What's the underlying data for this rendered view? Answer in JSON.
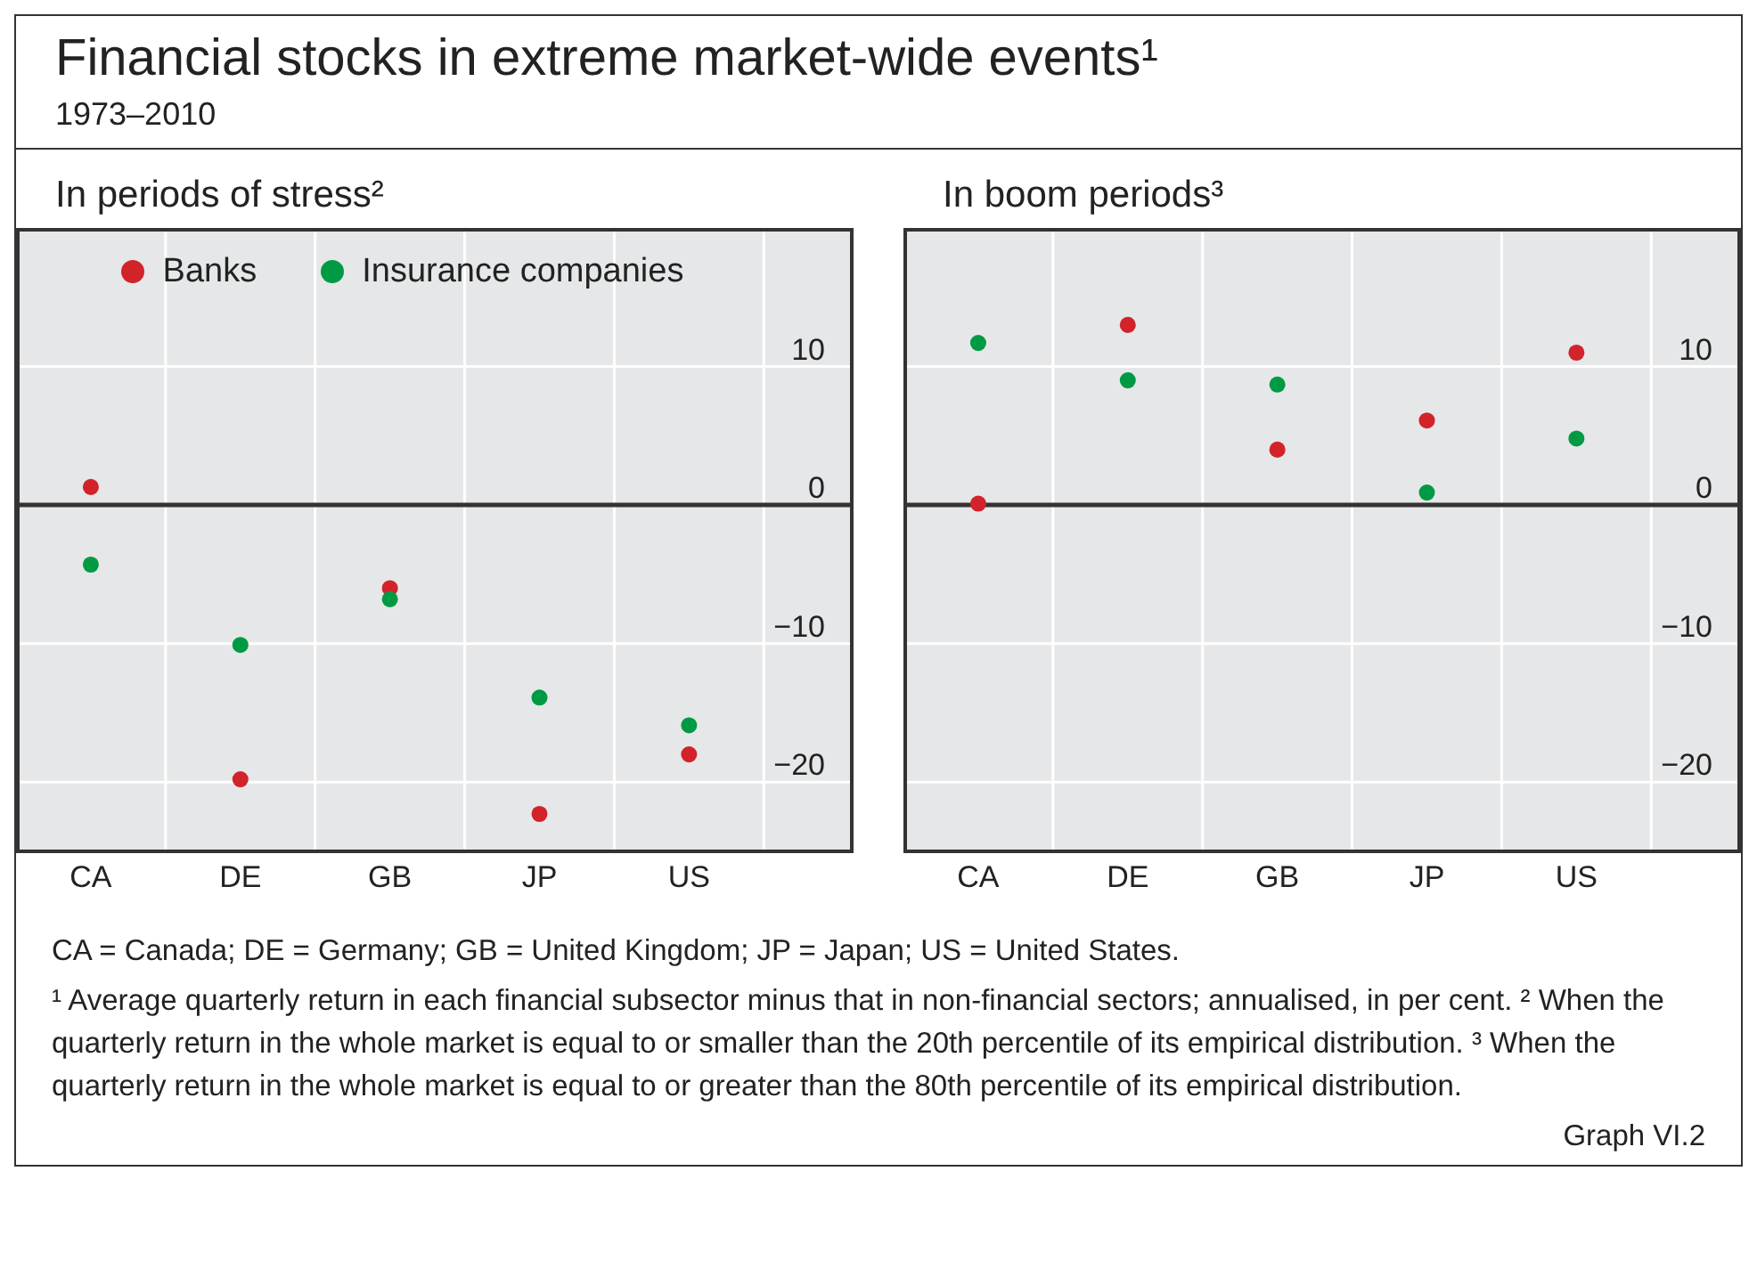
{
  "chart_data": [
    {
      "type": "other",
      "title": "Financial stocks in extreme market-wide events¹",
      "subtitle": "1973–2010"
    },
    {
      "type": "scatter",
      "title": "In periods of stress²",
      "categories": [
        "CA",
        "DE",
        "GB",
        "JP",
        "US"
      ],
      "ylim": [
        -25,
        20
      ],
      "yticks": [
        -20,
        -10,
        0,
        10
      ],
      "grid": true,
      "legend": "top",
      "marker": "circle",
      "ref_lines": [
        {
          "axis": "y",
          "value": 0,
          "color": "#333333"
        }
      ],
      "series": [
        {
          "name": "Banks",
          "color": "#d2232a",
          "values": [
            1.3,
            -19.8,
            -6.0,
            -22.3,
            -18.0
          ]
        },
        {
          "name": "Insurance companies",
          "color": "#009a44",
          "values": [
            -4.3,
            -10.1,
            -6.8,
            -13.9,
            -15.9
          ]
        }
      ]
    },
    {
      "type": "scatter",
      "title": "In boom periods³",
      "categories": [
        "CA",
        "DE",
        "GB",
        "JP",
        "US"
      ],
      "ylim": [
        -25,
        20
      ],
      "yticks": [
        -20,
        -10,
        0,
        10
      ],
      "grid": true,
      "marker": "circle",
      "ref_lines": [
        {
          "axis": "y",
          "value": 0,
          "color": "#333333"
        }
      ],
      "series": [
        {
          "color": "#d2232a",
          "values": [
            0.1,
            13.0,
            4.0,
            6.1,
            11.0
          ]
        },
        {
          "color": "#009a44",
          "values": [
            11.7,
            9.0,
            8.7,
            0.9,
            4.8
          ]
        }
      ]
    },
    {
      "type": "other",
      "annotations": [
        "CA = Canada; DE = Germany; GB = United Kingdom; JP = Japan; US = United States.",
        "¹ Average quarterly return in each financial subsector minus that in non-financial sectors; annualised, in per cent.    ² When the quarterly return in the whole market is equal to or smaller than the 20th percentile of its empirical distribution.    ³ When the quarterly return in the whole market is equal to or greater than the 80th percentile of its empirical distribution.",
        "Graph VI.2"
      ]
    }
  ]
}
